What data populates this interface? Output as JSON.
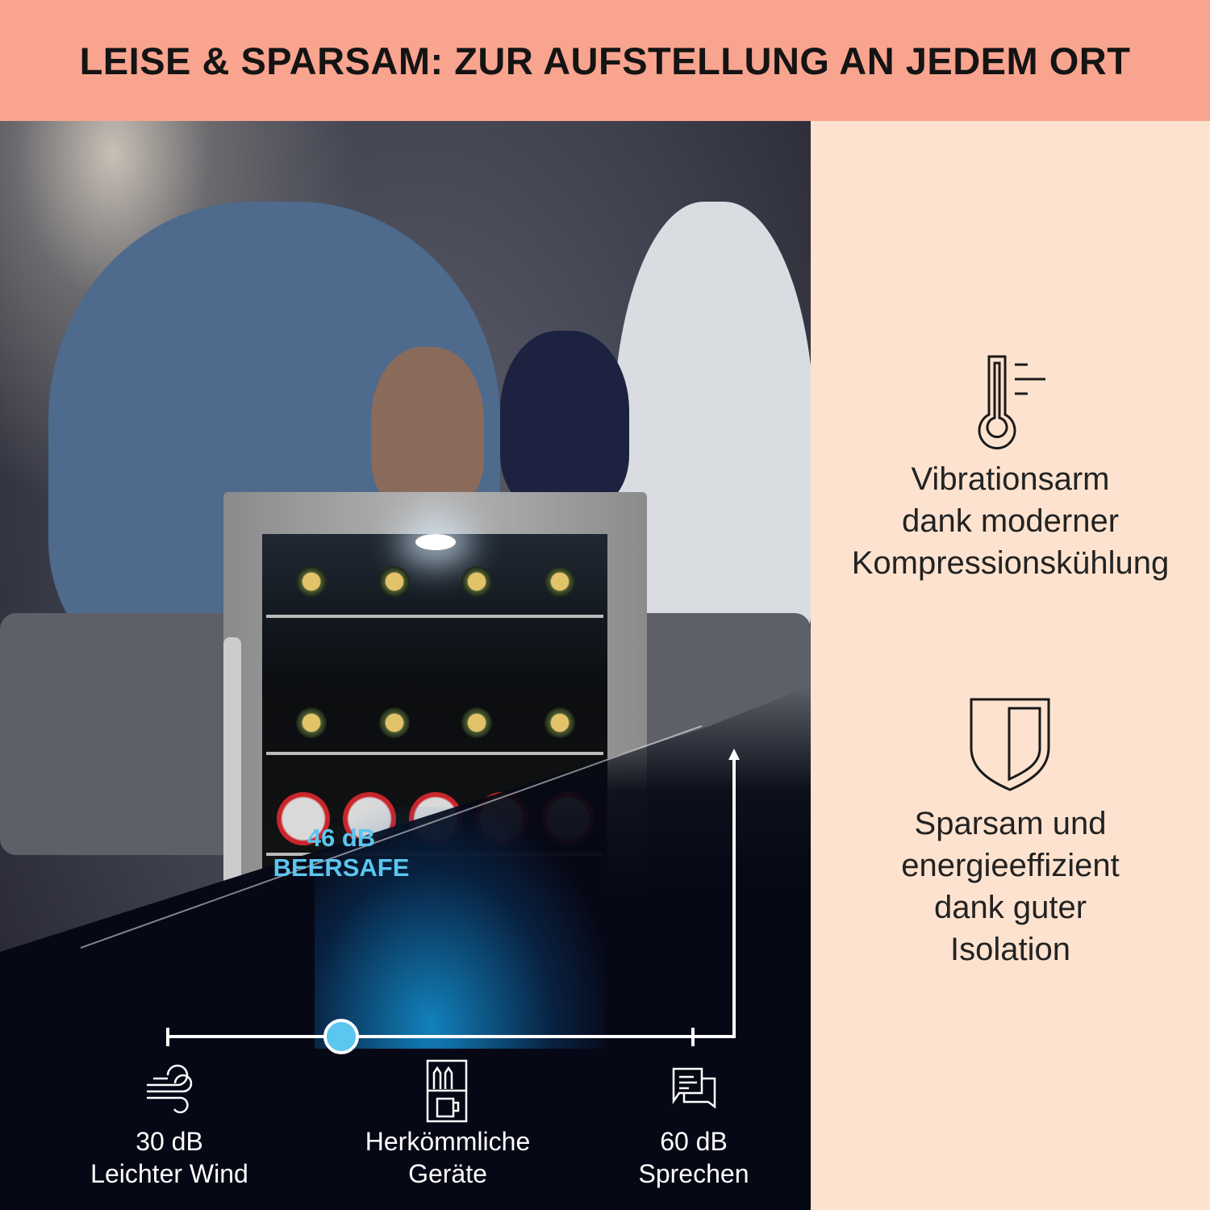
{
  "header": {
    "title": "LEISE & SPARSAM: ZUR AUFSTELLUNG AN JEDEM ORT"
  },
  "colors": {
    "header_bg": "#f9a48f",
    "panel_bg": "#fde3cf",
    "accent": "#5bc6ef"
  },
  "scale": {
    "highlight": {
      "value": "46 dB",
      "label": "BEERSAFE"
    },
    "points": [
      {
        "value": "30 dB",
        "label": "Leichter Wind",
        "icon": "wind-icon"
      },
      {
        "value": "",
        "label": "Herkömmliche Geräte",
        "line1": "Herkömmliche",
        "line2": "Geräte",
        "icon": "fridge-icon"
      },
      {
        "value": "60 dB",
        "label": "Sprechen",
        "icon": "speech-bubbles-icon"
      }
    ]
  },
  "features": [
    {
      "icon": "thermometer-icon",
      "lines": [
        "Vibrationsarm",
        "dank moderner",
        "Kompressionskühlung"
      ]
    },
    {
      "icon": "shield-icon",
      "lines": [
        "Sparsam und",
        "energieeffizient",
        "dank guter",
        "Isolation"
      ]
    }
  ]
}
